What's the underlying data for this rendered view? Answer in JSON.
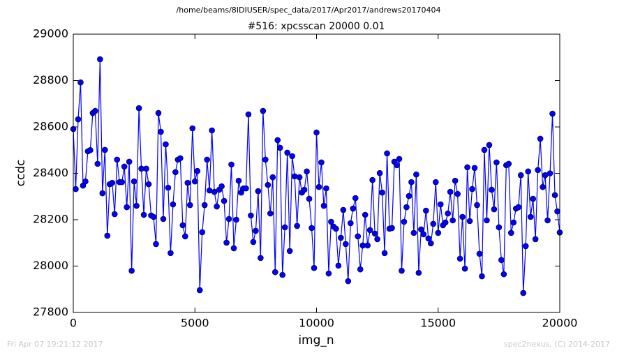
{
  "chart_data": {
    "type": "line",
    "suptitle": "/home/beams/8IDIUSER/spec_data/2017/Apr2017/andrews20170404",
    "title": "#516: xpcsscan 20000 0.01",
    "x_label": "img_n",
    "y_label": "ccdc",
    "footer_left": "Fri Apr 07 19:21:12 2017",
    "footer_right": "spec2nexus, (C) 2014-2017",
    "x": [
      0,
      100,
      200,
      300,
      400,
      500,
      600,
      700,
      800,
      900,
      1000,
      1100,
      1200,
      1300,
      1400,
      1500,
      1600,
      1700,
      1800,
      1900,
      2000,
      2100,
      2200,
      2300,
      2400,
      2500,
      2600,
      2700,
      2800,
      2900,
      3000,
      3100,
      3200,
      3300,
      3400,
      3500,
      3600,
      3700,
      3800,
      3900,
      4000,
      4100,
      4200,
      4300,
      4400,
      4500,
      4600,
      4700,
      4800,
      4900,
      5000,
      5100,
      5200,
      5300,
      5400,
      5500,
      5600,
      5700,
      5800,
      5900,
      6000,
      6100,
      6200,
      6300,
      6400,
      6500,
      6600,
      6700,
      6800,
      6900,
      7000,
      7100,
      7200,
      7300,
      7400,
      7500,
      7600,
      7700,
      7800,
      7900,
      8000,
      8100,
      8200,
      8300,
      8400,
      8500,
      8600,
      8700,
      8800,
      8900,
      9000,
      9100,
      9200,
      9300,
      9400,
      9500,
      9600,
      9700,
      9800,
      9900,
      10000,
      10100,
      10200,
      10300,
      10400,
      10500,
      10600,
      10700,
      10800,
      10900,
      11000,
      11100,
      11200,
      11300,
      11400,
      11500,
      11600,
      11700,
      11800,
      11900,
      12000,
      12100,
      12200,
      12300,
      12400,
      12500,
      12600,
      12700,
      12800,
      12900,
      13000,
      13100,
      13200,
      13300,
      13400,
      13500,
      13600,
      13700,
      13800,
      13900,
      14000,
      14100,
      14200,
      14300,
      14400,
      14500,
      14600,
      14700,
      14800,
      14900,
      15000,
      15100,
      15200,
      15300,
      15400,
      15500,
      15600,
      15700,
      15800,
      15900,
      16000,
      16100,
      16200,
      16300,
      16400,
      16500,
      16600,
      16700,
      16800,
      16900,
      17000,
      17100,
      17200,
      17300,
      17400,
      17500,
      17600,
      17700,
      17800,
      17900,
      18000,
      18100,
      18200,
      18300,
      18400,
      18500,
      18600,
      18700,
      18800,
      18900,
      19000,
      19100,
      19200,
      19300,
      19400,
      19500,
      19600,
      19700,
      19800,
      19900,
      20000
    ],
    "series": [
      {
        "color": "#0000ff",
        "values": [
          28591,
          28332,
          28633,
          28792,
          28347,
          28365,
          28495,
          28500,
          28660,
          28669,
          28441,
          28892,
          28314,
          28501,
          28131,
          28353,
          28359,
          28224,
          28459,
          28362,
          28362,
          28429,
          28254,
          28450,
          27980,
          28365,
          28260,
          28681,
          28420,
          28221,
          28420,
          28353,
          28218,
          28212,
          28095,
          28660,
          28579,
          28203,
          28525,
          28338,
          28056,
          28266,
          28405,
          28459,
          28465,
          28176,
          28128,
          28359,
          28263,
          28594,
          28365,
          28410,
          27896,
          28146,
          28263,
          28459,
          28326,
          28585,
          28320,
          28257,
          28329,
          28344,
          28281,
          28101,
          28203,
          28438,
          28077,
          28200,
          28368,
          28317,
          28335,
          28335,
          28654,
          28218,
          28104,
          28152,
          28323,
          28035,
          28669,
          28459,
          28350,
          28227,
          28383,
          27974,
          28543,
          28510,
          27962,
          28167,
          28489,
          28065,
          28474,
          28387,
          28173,
          28383,
          28317,
          28329,
          28408,
          28290,
          28164,
          27992,
          28576,
          28341,
          28447,
          28260,
          28335,
          27968,
          28191,
          28170,
          28161,
          28002,
          28122,
          28242,
          28095,
          27935,
          28185,
          28248,
          28293,
          28128,
          27986,
          28089,
          28221,
          28089,
          28155,
          28371,
          28140,
          28116,
          28401,
          28317,
          28056,
          28486,
          28161,
          28164,
          28450,
          28435,
          28462,
          27980,
          28191,
          28254,
          28302,
          28362,
          28143,
          28395,
          27971,
          28158,
          28137,
          28239,
          28119,
          28098,
          28182,
          28362,
          28143,
          28266,
          28176,
          28188,
          28227,
          28320,
          28197,
          28368,
          28311,
          28032,
          28212,
          27989,
          28426,
          28194,
          28332,
          28423,
          28263,
          28053,
          27956,
          28501,
          28197,
          28522,
          28329,
          28245,
          28447,
          28167,
          28026,
          27965,
          28435,
          28441,
          28143,
          28188,
          28248,
          28254,
          28392,
          27884,
          28086,
          28408,
          28212,
          28290,
          28116,
          28414,
          28549,
          28341,
          28392,
          28197,
          28400,
          28657,
          28306,
          28236,
          28145
        ]
      }
    ],
    "xlim": [
      0,
      20000
    ],
    "xticks": [
      0,
      5000,
      10000,
      15000,
      20000
    ],
    "ylim": [
      27800,
      29000
    ],
    "yticks": [
      27800,
      28000,
      28200,
      28400,
      28600,
      28800,
      29000
    ],
    "grid": false
  }
}
